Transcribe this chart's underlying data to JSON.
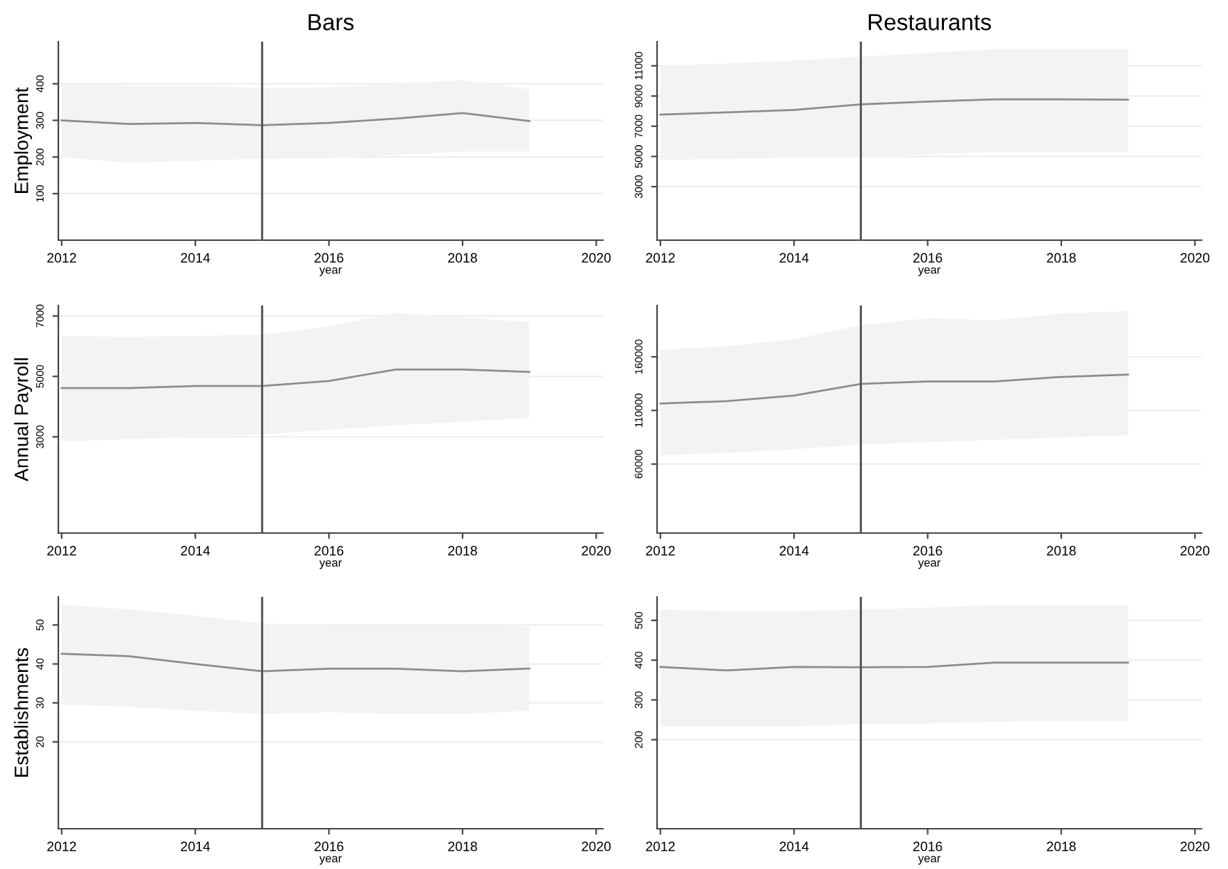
{
  "chart_data": [
    {
      "type": "line",
      "title": "Bars",
      "ylabel": "Employment",
      "xlabel": "year",
      "x": [
        2012,
        2013,
        2014,
        2015,
        2016,
        2017,
        2018,
        2019
      ],
      "xlim": [
        2011.95,
        2020.1
      ],
      "xticks": [
        2012,
        2014,
        2016,
        2018,
        2020
      ],
      "ylim": [
        -27,
        515
      ],
      "yticks": [
        100,
        200,
        300,
        400
      ],
      "grid": "y",
      "ref_lines": [
        {
          "axis": "x",
          "value": 2015
        }
      ],
      "series": [
        {
          "color": "#8c8c8c",
          "values": [
            300,
            290,
            293,
            287,
            293,
            305,
            320,
            298
          ],
          "lower": [
            200,
            185,
            190,
            195,
            197,
            205,
            215,
            215
          ],
          "upper": [
            400,
            395,
            395,
            388,
            390,
            400,
            410,
            385
          ]
        }
      ]
    },
    {
      "type": "line",
      "title": "Restaurants",
      "xlabel": "year",
      "x": [
        2012,
        2013,
        2014,
        2015,
        2016,
        2017,
        2018,
        2019
      ],
      "xlim": [
        2011.95,
        2020.1
      ],
      "xticks": [
        2012,
        2014,
        2016,
        2018,
        2020
      ],
      "ylim": [
        -540,
        12600
      ],
      "yticks": [
        3000,
        5000,
        7000,
        9000,
        11000
      ],
      "grid": "y",
      "ref_lines": [
        {
          "axis": "x",
          "value": 2015
        }
      ],
      "series": [
        {
          "color": "#8c8c8c",
          "values": [
            7770,
            7920,
            8080,
            8450,
            8630,
            8780,
            8780,
            8760
          ],
          "lower": [
            4750,
            4850,
            4920,
            5000,
            5150,
            5300,
            5300,
            5300
          ],
          "upper": [
            11000,
            11150,
            11350,
            11600,
            11850,
            12100,
            12100,
            12100
          ]
        }
      ]
    },
    {
      "type": "line",
      "ylabel": "Annual Payroll",
      "xlabel": "year",
      "x": [
        2012,
        2013,
        2014,
        2015,
        2016,
        2017,
        2018,
        2019
      ],
      "xlim": [
        2011.95,
        2020.1
      ],
      "xticks": [
        2012,
        2014,
        2016,
        2018,
        2020
      ],
      "ylim": [
        -185,
        7350
      ],
      "yticks": [
        3000,
        5000,
        7000
      ],
      "grid": "y",
      "ref_lines": [
        {
          "axis": "x",
          "value": 2015
        }
      ],
      "series": [
        {
          "color": "#8c8c8c",
          "values": [
            4615,
            4615,
            4680,
            4680,
            4850,
            5230,
            5230,
            5150
          ],
          "lower": [
            2850,
            2920,
            3000,
            3080,
            3230,
            3380,
            3500,
            3620
          ],
          "upper": [
            6340,
            6310,
            6340,
            6380,
            6650,
            7100,
            6950,
            6800
          ]
        }
      ]
    },
    {
      "type": "line",
      "xlabel": "year",
      "x": [
        2012,
        2013,
        2014,
        2015,
        2016,
        2017,
        2018,
        2019
      ],
      "xlim": [
        2011.95,
        2020.1
      ],
      "xticks": [
        2012,
        2014,
        2016,
        2018,
        2020
      ],
      "ylim": [
        -4350,
        208000
      ],
      "yticks": [
        60000,
        110000,
        160000
      ],
      "grid": "y",
      "ref_lines": [
        {
          "axis": "x",
          "value": 2015
        }
      ],
      "series": [
        {
          "color": "#8c8c8c",
          "values": [
            116500,
            118700,
            123900,
            134800,
            137000,
            137000,
            141300,
            143500
          ],
          "lower": [
            68300,
            70400,
            73900,
            78300,
            80400,
            82600,
            84800,
            87000
          ],
          "upper": [
            166500,
            170000,
            176500,
            189500,
            196000,
            194000,
            200400,
            202600
          ]
        }
      ]
    },
    {
      "type": "line",
      "ylabel": "Establishments",
      "xlabel": "year",
      "x": [
        2012,
        2013,
        2014,
        2015,
        2016,
        2017,
        2018,
        2019
      ],
      "xlim": [
        2011.95,
        2020.1
      ],
      "xticks": [
        2012,
        2014,
        2016,
        2018,
        2020
      ],
      "ylim": [
        -2.3,
        57.2
      ],
      "yticks": [
        20,
        30,
        40,
        50
      ],
      "grid": "y",
      "ref_lines": [
        {
          "axis": "x",
          "value": 2015
        }
      ],
      "series": [
        {
          "color": "#8c8c8c",
          "values": [
            42.6,
            42,
            40,
            38.1,
            38.8,
            38.8,
            38.1,
            38.8
          ],
          "lower": [
            29.6,
            29,
            28,
            27.2,
            27.6,
            27.2,
            27.2,
            28
          ],
          "upper": [
            55.2,
            54,
            52.4,
            50.4,
            50,
            50,
            49.8,
            49.6
          ]
        }
      ]
    },
    {
      "type": "line",
      "xlabel": "year",
      "x": [
        2012,
        2013,
        2014,
        2015,
        2016,
        2017,
        2018,
        2019
      ],
      "xlim": [
        2011.95,
        2020.1
      ],
      "xticks": [
        2012,
        2014,
        2016,
        2018,
        2020
      ],
      "ylim": [
        -24,
        559
      ],
      "yticks": [
        200,
        300,
        400,
        500
      ],
      "grid": "y",
      "ref_lines": [
        {
          "axis": "x",
          "value": 2015
        }
      ],
      "series": [
        {
          "color": "#8c8c8c",
          "values": [
            383,
            374,
            383,
            382,
            383,
            394,
            394,
            394
          ],
          "lower": [
            233,
            233,
            233,
            239,
            241,
            245,
            248,
            248
          ],
          "upper": [
            527,
            523,
            523,
            527,
            532,
            539,
            539,
            539
          ]
        }
      ]
    }
  ]
}
